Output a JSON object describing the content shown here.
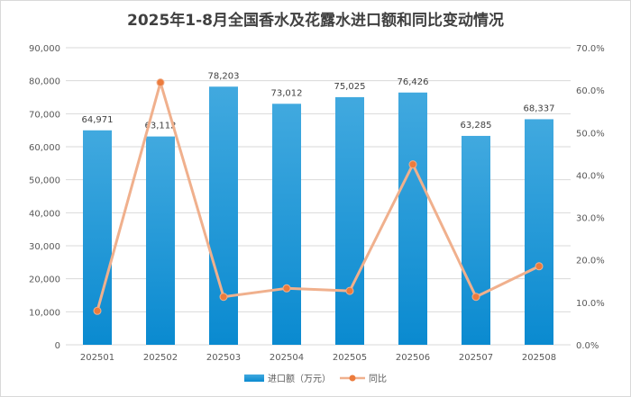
{
  "chart_data": {
    "type": "bar+line",
    "title": "2025年1-8月全国香水及花露水进口额和同比变动情况",
    "categories": [
      "202501",
      "202502",
      "202503",
      "202504",
      "202505",
      "202506",
      "202507",
      "202508"
    ],
    "series": [
      {
        "name": "进口额（万元）",
        "type": "bar",
        "axis": "left",
        "values": [
          64971,
          63112,
          78203,
          73012,
          75025,
          76426,
          63285,
          68337
        ],
        "value_labels": [
          "64,971",
          "63,112",
          "78,203",
          "73,012",
          "75,025",
          "76,426",
          "63,285",
          "68,337"
        ]
      },
      {
        "name": "同比",
        "type": "line",
        "axis": "right",
        "values": [
          8.0,
          61.8,
          11.3,
          13.3,
          12.7,
          42.5,
          11.3,
          18.5
        ]
      }
    ],
    "y_left": {
      "min": 0,
      "max": 90000,
      "step": 10000,
      "tick_labels": [
        "0",
        "10,000",
        "20,000",
        "30,000",
        "40,000",
        "50,000",
        "60,000",
        "70,000",
        "80,000",
        "90,000"
      ]
    },
    "y_right": {
      "min": 0,
      "max": 70,
      "step": 10,
      "tick_labels": [
        "0.0%",
        "10.0%",
        "20.0%",
        "30.0%",
        "40.0%",
        "50.0%",
        "60.0%",
        "70.0%"
      ]
    },
    "gridlines": true,
    "legend_position": "bottom",
    "colors": {
      "bar_top": "#41a9df",
      "bar_bottom": "#0a8ad0",
      "line": "#f0b08d",
      "marker": "#ec7b3c",
      "grid": "#d9d9d9"
    }
  }
}
